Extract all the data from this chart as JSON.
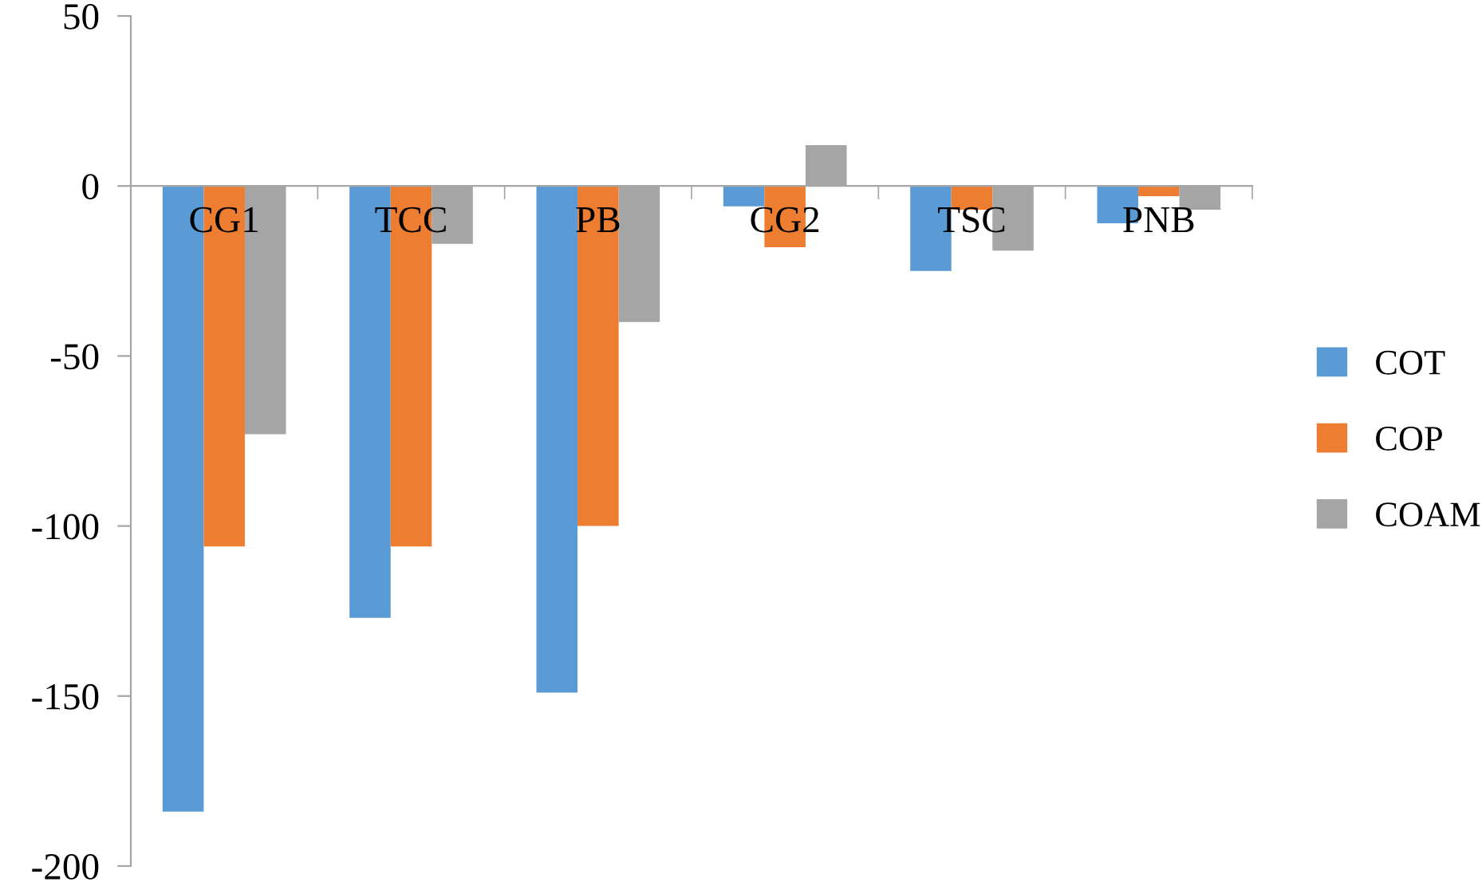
{
  "chart_data": {
    "type": "bar",
    "categories": [
      "CG1",
      "TCC",
      "PB",
      "CG2",
      "TSC",
      "PNB"
    ],
    "series": [
      {
        "name": "COT",
        "color": "#5b9bd5",
        "values": [
          -184,
          -127,
          -149,
          -6,
          -25,
          -11
        ]
      },
      {
        "name": "COP",
        "color": "#ed7d31",
        "values": [
          -106,
          -106,
          -100,
          -18,
          -7,
          -3
        ]
      },
      {
        "name": "COAM",
        "color": "#a5a5a5",
        "values": [
          -73,
          -17,
          -40,
          12,
          -19,
          -7
        ]
      }
    ],
    "ylim": [
      -200,
      50
    ],
    "yticks": [
      -200,
      -150,
      -100,
      -50,
      0,
      50
    ],
    "grid": false,
    "legend": "right"
  }
}
